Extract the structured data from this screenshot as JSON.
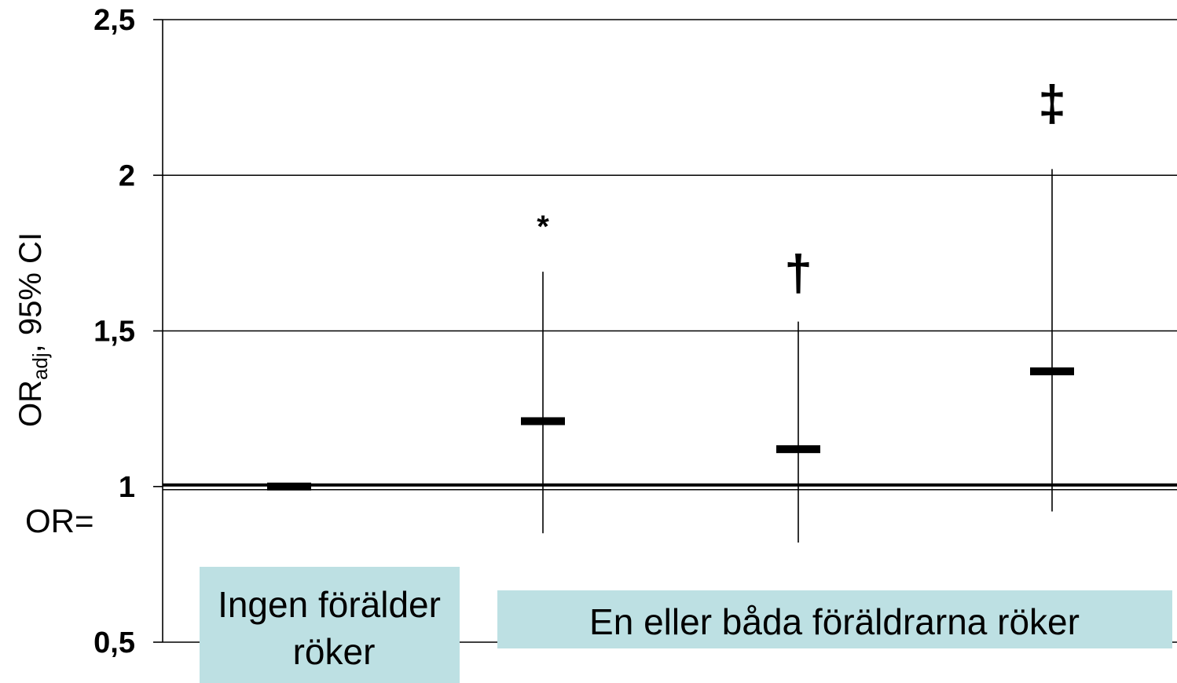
{
  "chart_data": {
    "type": "scatter",
    "ylabel_main": "OR",
    "ylabel_sub": "adj",
    "ylabel_rest": ", 95% CI",
    "ylim": [
      0.5,
      2.5
    ],
    "yticks": [
      0.5,
      1,
      1.5,
      2,
      2.5
    ],
    "ytick_labels": [
      "0,5",
      "1",
      "1,5",
      "2",
      "2,5"
    ],
    "grid": true,
    "reference_line": {
      "value": 1.0,
      "label": "OR="
    },
    "points": [
      {
        "or": 1.0,
        "ci": null,
        "mark": ""
      },
      {
        "or": 1.21,
        "ci": [
          0.85,
          1.69
        ],
        "mark": "*"
      },
      {
        "or": 1.12,
        "ci": [
          0.82,
          1.53
        ],
        "mark": "†"
      },
      {
        "or": 1.37,
        "ci": [
          0.92,
          2.02
        ],
        "mark": "‡"
      }
    ],
    "groups": [
      {
        "label_lines": [
          "Ingen förälder",
          "röker"
        ]
      },
      {
        "label_lines": [
          "En eller båda föräldrarna röker"
        ]
      }
    ]
  }
}
